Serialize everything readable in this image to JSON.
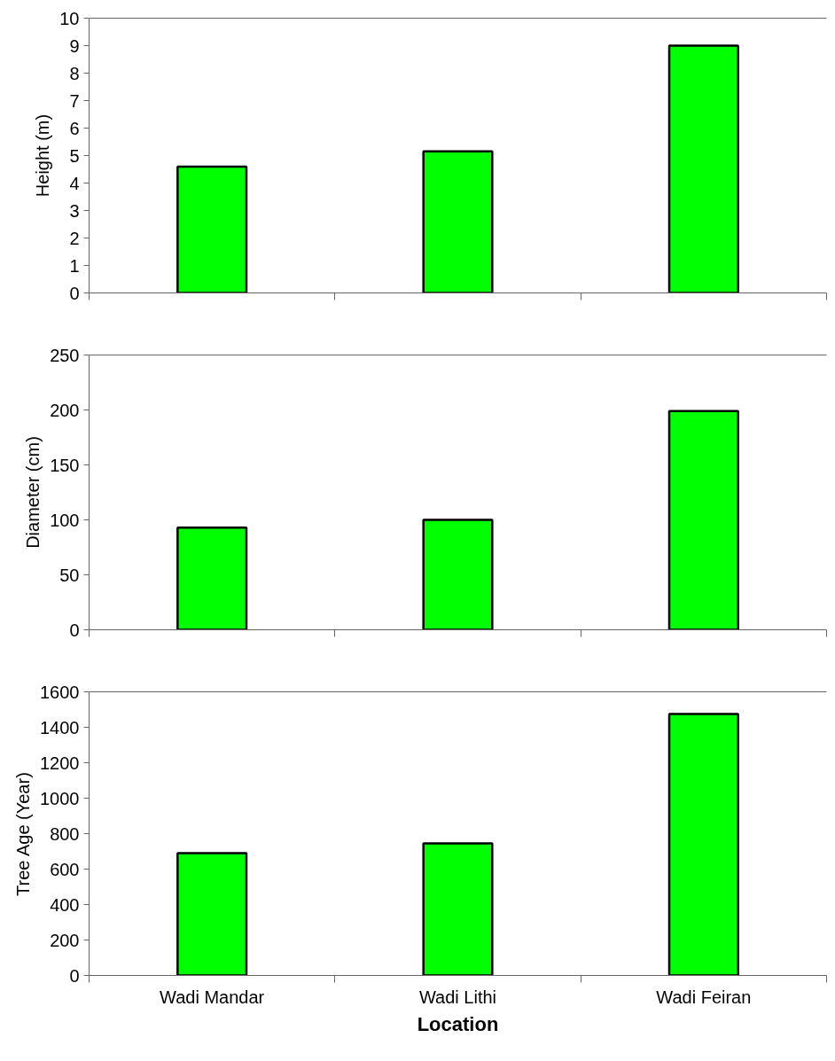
{
  "chart_data": [
    {
      "type": "bar",
      "categories": [
        null,
        null,
        null
      ],
      "values": [
        4.6,
        5.15,
        9.0
      ],
      "color": "#00ff00",
      "ylabel": "Height (m)",
      "ylim": [
        0,
        10
      ],
      "yticks": [
        0,
        1,
        2,
        3,
        4,
        5,
        6,
        7,
        8,
        9,
        10
      ],
      "grid": false,
      "tick_labels": "y"
    },
    {
      "type": "bar",
      "categories": [
        null,
        null,
        null
      ],
      "values": [
        93,
        100,
        199
      ],
      "color": "#00ff00",
      "ylabel": "Diameter (cm)",
      "ylim": [
        0,
        250
      ],
      "yticks": [
        0,
        50,
        100,
        150,
        200,
        250
      ],
      "grid": false,
      "tick_labels": "y"
    },
    {
      "type": "bar",
      "categories": [
        "Wadi Mandar",
        "Wadi Lithi",
        "Wadi Feiran"
      ],
      "values": [
        690,
        745,
        1475
      ],
      "color": "#00ff00",
      "ylabel": "Tree Age (Year)",
      "xlabel": "Location",
      "ylim": [
        0,
        1600
      ],
      "yticks": [
        0,
        200,
        400,
        600,
        800,
        1000,
        1200,
        1400,
        1600
      ],
      "grid": false
    }
  ]
}
